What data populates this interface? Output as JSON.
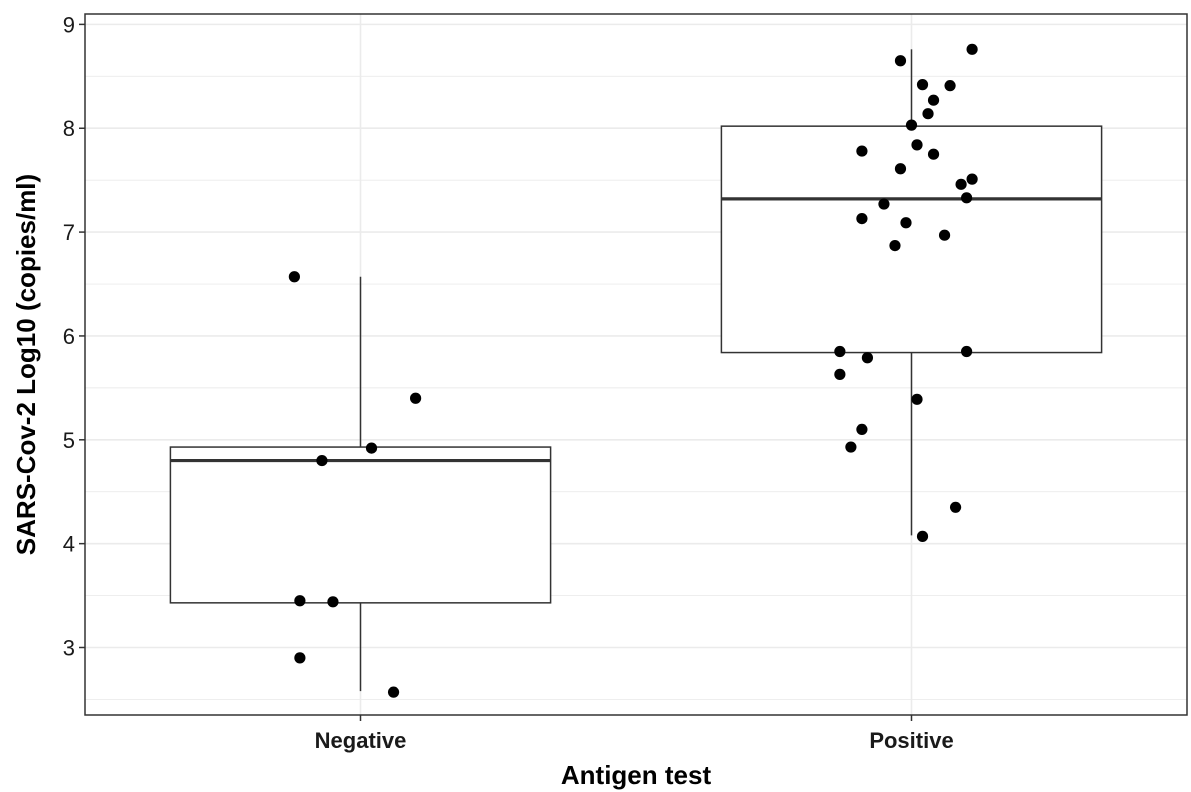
{
  "chart_data": {
    "type": "box",
    "xlabel": "Antigen test",
    "ylabel": "SARS-Cov-2 Log10 (copies/ml)",
    "ylim": [
      2.35,
      9.1
    ],
    "yticks": [
      3,
      4,
      5,
      6,
      7,
      8,
      9
    ],
    "grid": true,
    "categories": [
      "Negative",
      "Positive"
    ],
    "boxes": [
      {
        "category": "Negative",
        "whisker_low": 2.58,
        "q1": 3.43,
        "median": 4.8,
        "q3": 4.93,
        "whisker_high": 6.57
      },
      {
        "category": "Positive",
        "whisker_low": 4.08,
        "q1": 5.84,
        "median": 7.32,
        "q3": 8.02,
        "whisker_high": 8.76
      }
    ],
    "points": [
      {
        "category": "Negative",
        "jitter": -0.12,
        "y": 6.57
      },
      {
        "category": "Negative",
        "jitter": 0.1,
        "y": 5.4
      },
      {
        "category": "Negative",
        "jitter": 0.02,
        "y": 4.92
      },
      {
        "category": "Negative",
        "jitter": -0.07,
        "y": 4.8
      },
      {
        "category": "Negative",
        "jitter": -0.11,
        "y": 3.45
      },
      {
        "category": "Negative",
        "jitter": -0.05,
        "y": 3.44
      },
      {
        "category": "Negative",
        "jitter": -0.11,
        "y": 2.9
      },
      {
        "category": "Negative",
        "jitter": 0.06,
        "y": 2.57
      },
      {
        "category": "Positive",
        "jitter": 0.11,
        "y": 8.76
      },
      {
        "category": "Positive",
        "jitter": -0.02,
        "y": 8.65
      },
      {
        "category": "Positive",
        "jitter": 0.02,
        "y": 8.42
      },
      {
        "category": "Positive",
        "jitter": 0.07,
        "y": 8.41
      },
      {
        "category": "Positive",
        "jitter": 0.04,
        "y": 8.27
      },
      {
        "category": "Positive",
        "jitter": 0.03,
        "y": 8.14
      },
      {
        "category": "Positive",
        "jitter": 0.0,
        "y": 8.03
      },
      {
        "category": "Positive",
        "jitter": 0.01,
        "y": 7.84
      },
      {
        "category": "Positive",
        "jitter": -0.09,
        "y": 7.78
      },
      {
        "category": "Positive",
        "jitter": 0.04,
        "y": 7.75
      },
      {
        "category": "Positive",
        "jitter": -0.02,
        "y": 7.61
      },
      {
        "category": "Positive",
        "jitter": 0.11,
        "y": 7.51
      },
      {
        "category": "Positive",
        "jitter": 0.09,
        "y": 7.46
      },
      {
        "category": "Positive",
        "jitter": 0.1,
        "y": 7.33
      },
      {
        "category": "Positive",
        "jitter": -0.05,
        "y": 7.27
      },
      {
        "category": "Positive",
        "jitter": -0.09,
        "y": 7.13
      },
      {
        "category": "Positive",
        "jitter": -0.01,
        "y": 7.09
      },
      {
        "category": "Positive",
        "jitter": 0.06,
        "y": 6.97
      },
      {
        "category": "Positive",
        "jitter": -0.03,
        "y": 6.87
      },
      {
        "category": "Positive",
        "jitter": -0.13,
        "y": 5.85
      },
      {
        "category": "Positive",
        "jitter": 0.1,
        "y": 5.85
      },
      {
        "category": "Positive",
        "jitter": -0.08,
        "y": 5.79
      },
      {
        "category": "Positive",
        "jitter": -0.13,
        "y": 5.63
      },
      {
        "category": "Positive",
        "jitter": 0.01,
        "y": 5.39
      },
      {
        "category": "Positive",
        "jitter": -0.09,
        "y": 5.1
      },
      {
        "category": "Positive",
        "jitter": -0.11,
        "y": 4.93
      },
      {
        "category": "Positive",
        "jitter": 0.08,
        "y": 4.35
      },
      {
        "category": "Positive",
        "jitter": 0.02,
        "y": 4.07
      }
    ],
    "colors": {
      "box_fill": "#ffffff",
      "stroke": "#333333",
      "grid": "#ebebeb",
      "point": "#000000"
    }
  }
}
